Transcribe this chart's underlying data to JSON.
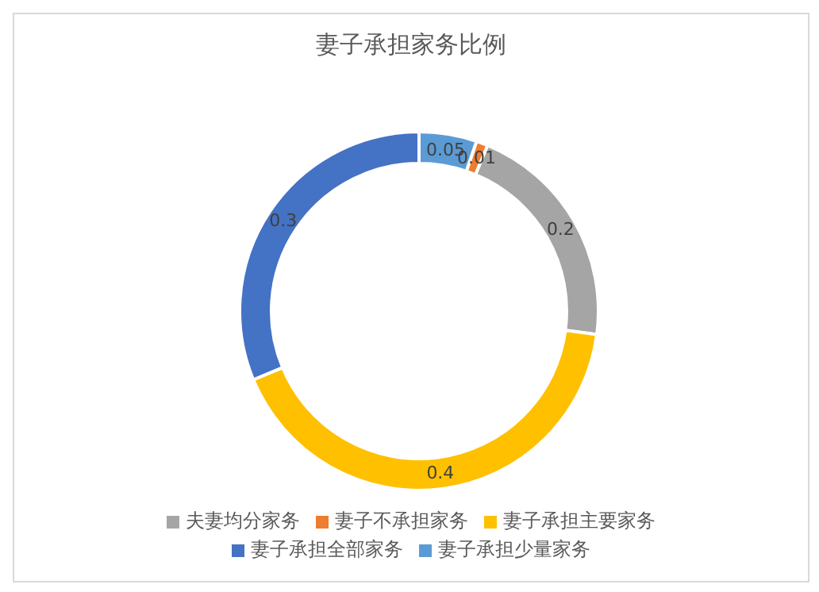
{
  "chart_data": {
    "type": "donut",
    "title": "妻子承担家务比例",
    "categories": [
      "妻子承担少量家务",
      "妻子不承担家务",
      "夫妻均分家务",
      "妻子承担主要家务",
      "妻子承担全部家务"
    ],
    "values": [
      0.05,
      0.01,
      0.2,
      0.4,
      0.3
    ],
    "colors": [
      "#5b9bd5",
      "#ed7d31",
      "#a5a5a5",
      "#ffc000",
      "#4472c4"
    ],
    "data_labels": true,
    "legend": "bottom"
  }
}
